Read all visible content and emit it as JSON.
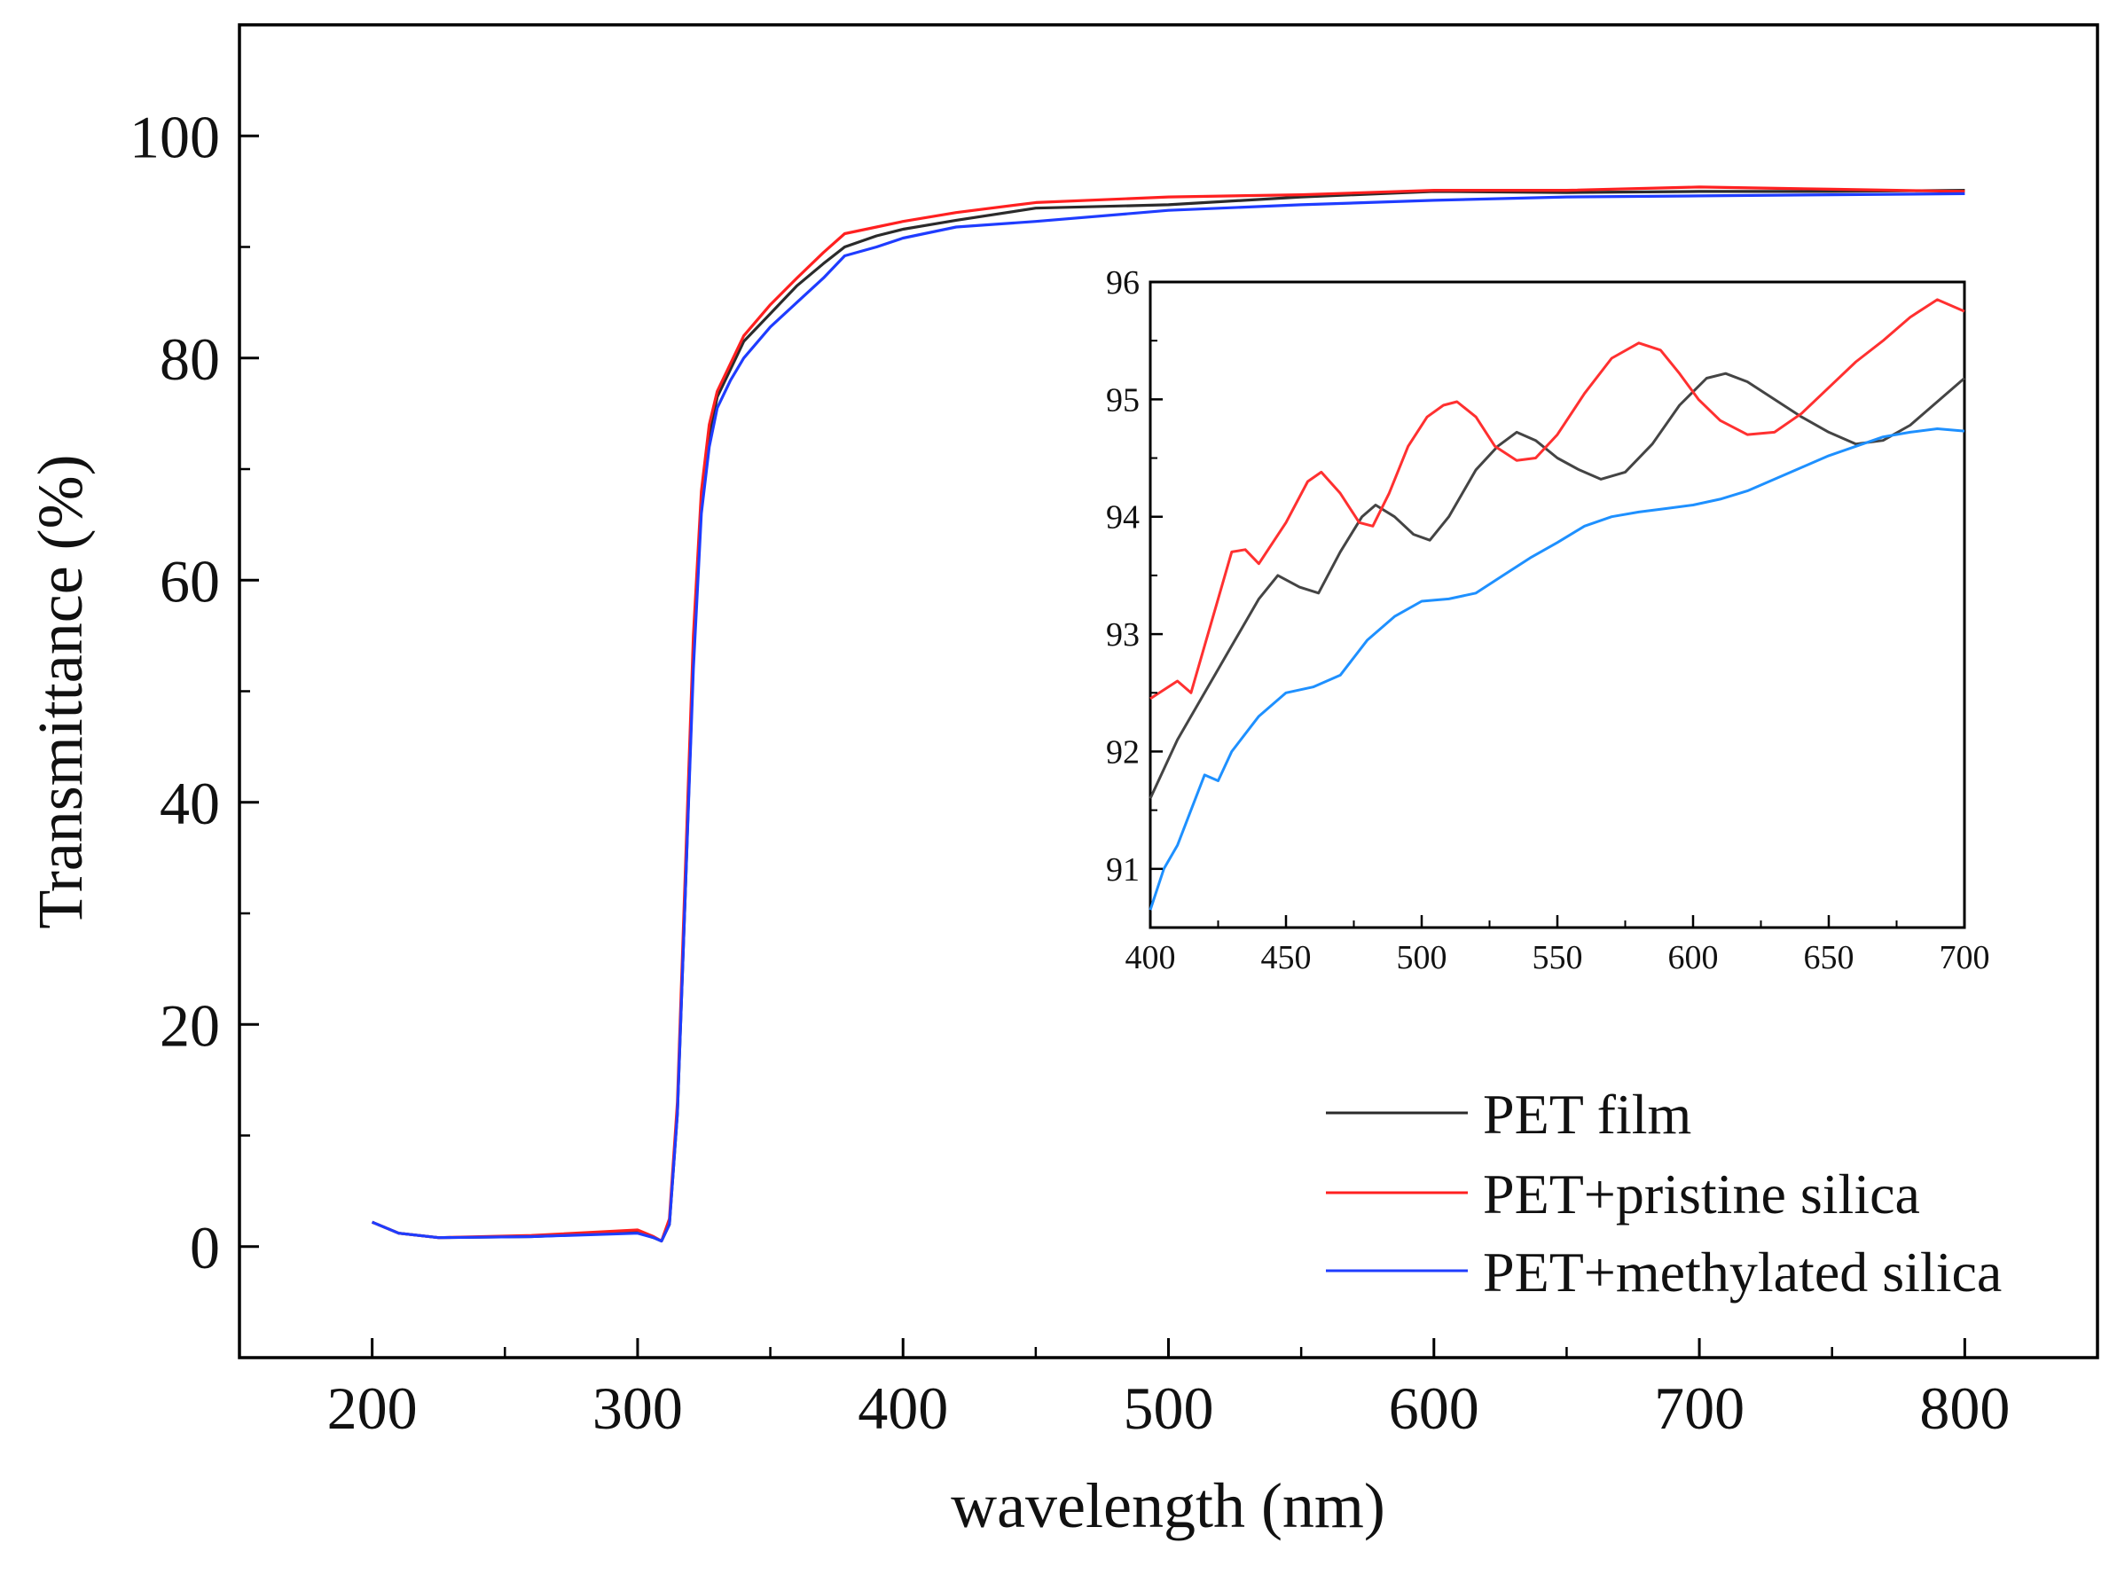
{
  "chart_data": {
    "type": "line",
    "title": "",
    "xlabel": "wavelength (nm)",
    "ylabel": "Transmittance (%)",
    "xlim": [
      150,
      850
    ],
    "ylim": [
      -10,
      110
    ],
    "xticks": [
      "200",
      "300",
      "400",
      "500",
      "600",
      "700",
      "800"
    ],
    "yticks": [
      "0",
      "20",
      "40",
      "60",
      "80",
      "100"
    ],
    "grid": false,
    "legend_position": "bottom-right",
    "series": [
      {
        "name": "PET film",
        "color": "#2b2b2b",
        "x": [
          200,
          210,
          225,
          260,
          300,
          306,
          309,
          312,
          315,
          318,
          321,
          324,
          327,
          330,
          335,
          340,
          350,
          360,
          370,
          378,
          390,
          400,
          420,
          450,
          500,
          550,
          600,
          650,
          700,
          750,
          800
        ],
        "y": [
          2.2,
          1.2,
          0.8,
          0.9,
          1.3,
          0.8,
          0.5,
          2,
          12,
          32,
          53,
          67,
          73,
          76.5,
          79,
          81.5,
          84,
          86.5,
          88.5,
          90,
          91,
          91.6,
          92.4,
          93.5,
          93.8,
          94.5,
          95.0,
          94.9,
          95.0,
          95.0,
          95.1
        ]
      },
      {
        "name": "PET+pristine silica",
        "color": "#ff2020",
        "x": [
          200,
          210,
          225,
          260,
          300,
          306,
          309,
          312,
          315,
          318,
          321,
          324,
          327,
          330,
          335,
          340,
          350,
          360,
          370,
          378,
          390,
          400,
          420,
          450,
          500,
          550,
          600,
          650,
          700,
          750,
          800
        ],
        "y": [
          2.2,
          1.2,
          0.8,
          1.0,
          1.5,
          0.9,
          0.5,
          2.5,
          13,
          34,
          55,
          68,
          74,
          77,
          79.5,
          82,
          84.8,
          87.2,
          89.5,
          91.2,
          91.8,
          92.3,
          93.1,
          94.0,
          94.5,
          94.7,
          95.1,
          95.1,
          95.4,
          95.2,
          95.0
        ]
      },
      {
        "name": "PET+methylated silica",
        "color": "#1f3cff",
        "x": [
          200,
          210,
          225,
          260,
          300,
          306,
          309,
          312,
          315,
          318,
          321,
          324,
          327,
          330,
          335,
          340,
          350,
          360,
          370,
          378,
          390,
          400,
          420,
          450,
          500,
          550,
          600,
          650,
          700,
          750,
          800
        ],
        "y": [
          2.2,
          1.2,
          0.8,
          0.9,
          1.2,
          0.8,
          0.5,
          2,
          12,
          32,
          52,
          66,
          72,
          75.5,
          78,
          80,
          82.8,
          85,
          87.2,
          89.2,
          90,
          90.8,
          91.8,
          92.3,
          93.3,
          93.8,
          94.2,
          94.5,
          94.6,
          94.7,
          94.8
        ]
      }
    ],
    "inset": {
      "type": "line",
      "xlim": [
        400,
        700
      ],
      "ylim": [
        90.5,
        96
      ],
      "xticks": [
        "400",
        "450",
        "500",
        "550",
        "600",
        "650",
        "700"
      ],
      "yticks": [
        "91",
        "92",
        "93",
        "94",
        "95",
        "96"
      ],
      "series": [
        {
          "name": "PET film",
          "color": "#444444",
          "x": [
            400,
            410,
            420,
            430,
            440,
            447,
            455,
            462,
            470,
            478,
            483,
            490,
            497,
            503,
            510,
            520,
            528,
            535,
            542,
            550,
            558,
            566,
            575,
            585,
            595,
            605,
            612,
            620,
            630,
            640,
            650,
            660,
            670,
            680,
            690,
            700
          ],
          "y": [
            91.6,
            92.1,
            92.5,
            92.9,
            93.3,
            93.5,
            93.4,
            93.35,
            93.7,
            94.0,
            94.1,
            94.0,
            93.85,
            93.8,
            94.0,
            94.4,
            94.6,
            94.72,
            94.65,
            94.5,
            94.4,
            94.32,
            94.38,
            94.62,
            94.95,
            95.18,
            95.22,
            95.15,
            95.0,
            94.85,
            94.72,
            94.62,
            94.65,
            94.78,
            94.98,
            95.18
          ]
        },
        {
          "name": "PET+pristine silica",
          "color": "#ff3030",
          "x": [
            400,
            410,
            415,
            420,
            425,
            430,
            435,
            440,
            450,
            458,
            463,
            470,
            477,
            482,
            488,
            495,
            502,
            508,
            513,
            520,
            527,
            535,
            542,
            550,
            560,
            570,
            580,
            588,
            595,
            602,
            610,
            620,
            630,
            640,
            650,
            660,
            670,
            680,
            690,
            700
          ],
          "y": [
            92.45,
            92.6,
            92.5,
            92.9,
            93.3,
            93.7,
            93.72,
            93.6,
            93.95,
            94.3,
            94.38,
            94.2,
            93.95,
            93.92,
            94.2,
            94.6,
            94.85,
            94.95,
            94.98,
            94.85,
            94.6,
            94.48,
            94.5,
            94.7,
            95.05,
            95.35,
            95.48,
            95.42,
            95.22,
            95.0,
            94.82,
            94.7,
            94.72,
            94.88,
            95.1,
            95.32,
            95.5,
            95.7,
            95.85,
            95.75
          ]
        },
        {
          "name": "PET+methylated silica",
          "color": "#1e90ff",
          "x": [
            400,
            405,
            410,
            415,
            420,
            425,
            430,
            440,
            450,
            460,
            470,
            480,
            490,
            500,
            510,
            520,
            530,
            540,
            550,
            560,
            570,
            580,
            590,
            600,
            610,
            620,
            630,
            640,
            650,
            660,
            670,
            680,
            690,
            700
          ],
          "y": [
            90.65,
            91.0,
            91.2,
            91.5,
            91.8,
            91.75,
            92.0,
            92.3,
            92.5,
            92.55,
            92.65,
            92.95,
            93.15,
            93.28,
            93.3,
            93.35,
            93.5,
            93.65,
            93.78,
            93.92,
            94.0,
            94.04,
            94.07,
            94.1,
            94.15,
            94.22,
            94.32,
            94.42,
            94.52,
            94.6,
            94.68,
            94.72,
            94.75,
            94.73
          ]
        }
      ]
    }
  }
}
